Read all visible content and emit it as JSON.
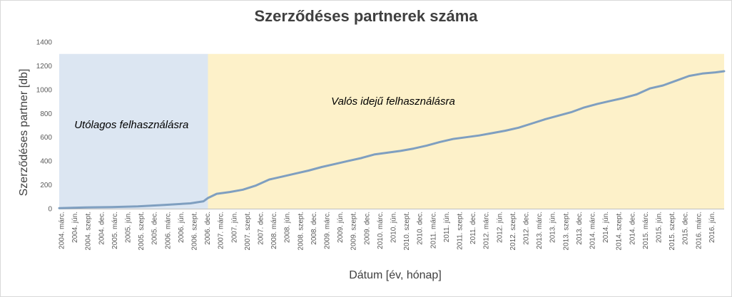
{
  "chart_data": {
    "type": "line",
    "title": "Szerződéses partnerek száma",
    "xlabel": "Dátum [év, hónap]",
    "ylabel": "Szerződéses partner [db]",
    "ylim": [
      0,
      1400
    ],
    "yticks": [
      0,
      200,
      400,
      600,
      800,
      1000,
      1200,
      1400
    ],
    "grid": false,
    "legend": "none",
    "x_start_month": "2004-03",
    "x_end_month": "2016-11",
    "x_tick_labels": [
      "2004. márc.",
      "2004. jún.",
      "2004. szept.",
      "2004. dec.",
      "2005. márc.",
      "2005. jún.",
      "2005. szept.",
      "2005. dec.",
      "2006. márc.",
      "2006. jún.",
      "2006. szept.",
      "2006. dec.",
      "2007. márc.",
      "2007. jún.",
      "2007. szept.",
      "2007. dec.",
      "2008. márc.",
      "2008. jún.",
      "2008. szept.",
      "2008. dec.",
      "2009. márc.",
      "2009. jún.",
      "2009. szept.",
      "2009. dec.",
      "2010. márc.",
      "2010. jún.",
      "2010. szept.",
      "2010. dec.",
      "2011. márc.",
      "2011. jún.",
      "2011. szept.",
      "2011. dec.",
      "2012. márc.",
      "2012. jún.",
      "2012. szept.",
      "2012. dec.",
      "2013. márc.",
      "2013. jún.",
      "2013. szept.",
      "2013. dec.",
      "2014. márc.",
      "2014. jún.",
      "2014. szept.",
      "2014. dec.",
      "2015. márc.",
      "2015. jún.",
      "2015. szept.",
      "2015. dec.",
      "2016. márc.",
      "2016. jún."
    ],
    "regions": [
      {
        "label": "Utólagos felhasználásra",
        "from": "2004-03",
        "to": "2007-01",
        "color": "#dce6f2"
      },
      {
        "label": "Valós idejű felhasználásra",
        "from": "2007-01",
        "to": "2016-11",
        "color": "#fdf1c9"
      }
    ],
    "series": [
      {
        "color": "#7f9fc0",
        "points": [
          [
            "2004-03",
            5
          ],
          [
            "2004-09",
            10
          ],
          [
            "2005-03",
            14
          ],
          [
            "2005-09",
            20
          ],
          [
            "2006-03",
            32
          ],
          [
            "2006-09",
            45
          ],
          [
            "2006-12",
            62
          ],
          [
            "2007-01",
            90
          ],
          [
            "2007-03",
            125
          ],
          [
            "2007-06",
            140
          ],
          [
            "2007-09",
            160
          ],
          [
            "2007-12",
            195
          ],
          [
            "2008-03",
            245
          ],
          [
            "2008-06",
            270
          ],
          [
            "2008-09",
            295
          ],
          [
            "2008-12",
            320
          ],
          [
            "2009-03",
            350
          ],
          [
            "2009-06",
            375
          ],
          [
            "2009-09",
            400
          ],
          [
            "2009-12",
            425
          ],
          [
            "2010-03",
            455
          ],
          [
            "2010-06",
            470
          ],
          [
            "2010-09",
            485
          ],
          [
            "2010-12",
            505
          ],
          [
            "2011-03",
            530
          ],
          [
            "2011-06",
            560
          ],
          [
            "2011-09",
            585
          ],
          [
            "2011-12",
            600
          ],
          [
            "2012-03",
            615
          ],
          [
            "2012-06",
            635
          ],
          [
            "2012-09",
            655
          ],
          [
            "2012-12",
            680
          ],
          [
            "2013-03",
            715
          ],
          [
            "2013-06",
            750
          ],
          [
            "2013-09",
            780
          ],
          [
            "2013-12",
            810
          ],
          [
            "2014-03",
            850
          ],
          [
            "2014-06",
            880
          ],
          [
            "2014-09",
            905
          ],
          [
            "2014-12",
            930
          ],
          [
            "2015-03",
            960
          ],
          [
            "2015-06",
            1010
          ],
          [
            "2015-09",
            1035
          ],
          [
            "2015-12",
            1075
          ],
          [
            "2016-03",
            1115
          ],
          [
            "2016-06",
            1135
          ],
          [
            "2016-09",
            1145
          ],
          [
            "2016-11",
            1155
          ]
        ]
      }
    ]
  }
}
